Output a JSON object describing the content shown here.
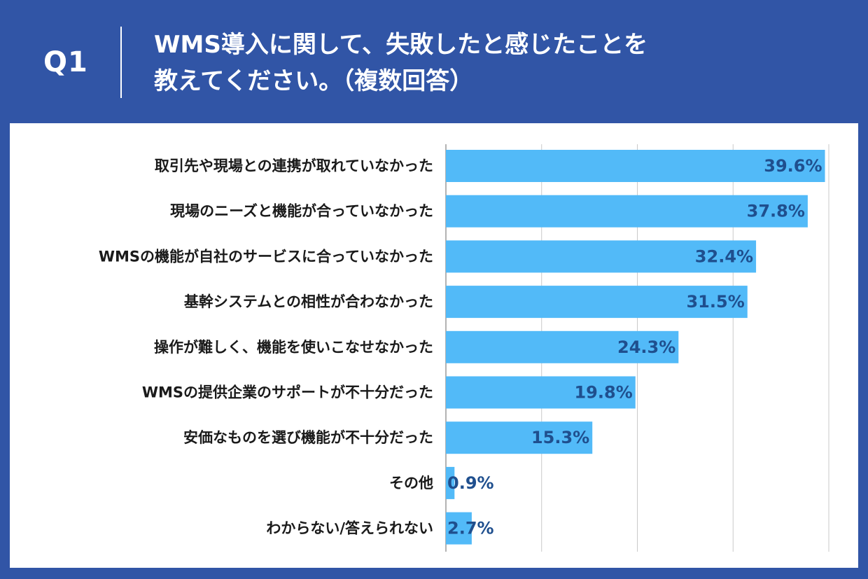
{
  "header": {
    "question_label": "Q1",
    "title_line1": "WMS導入に関して、失敗したと感じたことを",
    "title_line2": "教えてください。（複数回答）"
  },
  "colors": {
    "background": "#3155a6",
    "panel": "#ffffff",
    "bar": "#52baf8",
    "value_text": "#1f4f8e",
    "label_text": "#1a1a1a",
    "grid": "#c9c9c9"
  },
  "chart_data": {
    "type": "bar",
    "orientation": "horizontal",
    "categories": [
      "取引先や現場との連携が取れていなかった",
      "現場のニーズと機能が合っていなかった",
      "WMSの機能が自社のサービスに合っていなかった",
      "基幹システムとの相性が合わなかった",
      "操作が難しく、機能を使いこなせなかった",
      "WMSの提供企業のサポートが不十分だった",
      "安価なものを選び機能が不十分だった",
      "その他",
      "わからない/答えられない"
    ],
    "values": [
      39.6,
      37.8,
      32.4,
      31.5,
      24.3,
      19.8,
      15.3,
      0.9,
      2.7
    ],
    "value_labels": [
      "39.6%",
      "37.8%",
      "32.4%",
      "31.5%",
      "24.3%",
      "19.8%",
      "15.3%",
      "0.9%",
      "2.7%"
    ],
    "xlim": [
      0,
      40
    ],
    "gridlines": [
      0,
      10,
      20,
      30,
      40
    ],
    "grid": true,
    "legend": false
  }
}
